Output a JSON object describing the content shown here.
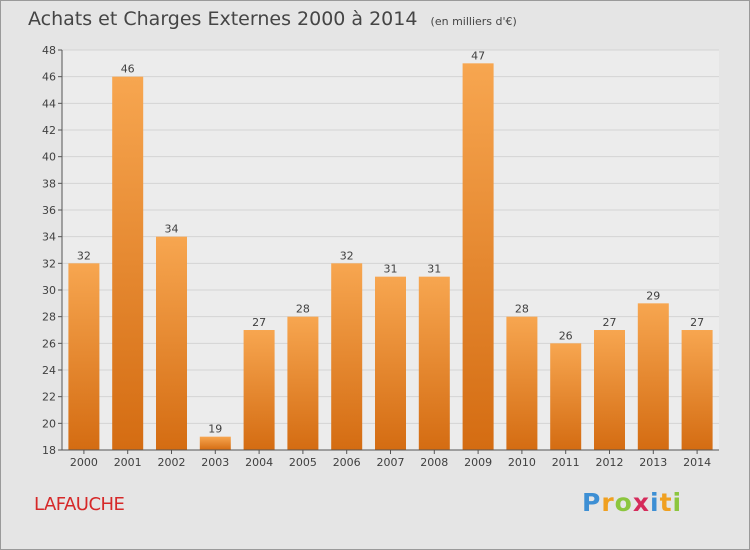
{
  "title": "Achats et Charges Externes 2000 à 2014",
  "unit_note": "(en milliers d'€)",
  "commune": "LAFAUCHE",
  "logo": {
    "letters": [
      "P",
      "r",
      "o",
      "x",
      "i",
      "t",
      "i"
    ],
    "colors": [
      "#3d8fd4",
      "#f0a020",
      "#8cc63e",
      "#d52b5b",
      "#3d8fd4",
      "#f0a020",
      "#8cc63e"
    ]
  },
  "colors": {
    "bar_top": "#f7a650",
    "bar_bottom": "#d46c12",
    "title_text": "#454545",
    "commune_text": "#d62929"
  },
  "chart_data": {
    "type": "bar",
    "title": "Achats et Charges Externes 2000 à 2014",
    "subtitle": "(en milliers d'€)",
    "xlabel": "",
    "ylabel": "",
    "categories": [
      "2000",
      "2001",
      "2002",
      "2003",
      "2004",
      "2005",
      "2006",
      "2007",
      "2008",
      "2009",
      "2010",
      "2011",
      "2012",
      "2013",
      "2014"
    ],
    "values": [
      32,
      46,
      34,
      19,
      27,
      28,
      32,
      31,
      31,
      47,
      28,
      26,
      27,
      29,
      27
    ],
    "ylim": [
      18,
      48
    ],
    "yticks": [
      18,
      20,
      22,
      24,
      26,
      28,
      30,
      32,
      34,
      36,
      38,
      40,
      42,
      44,
      46,
      48
    ],
    "grid": "horizontal",
    "legend": "none"
  }
}
